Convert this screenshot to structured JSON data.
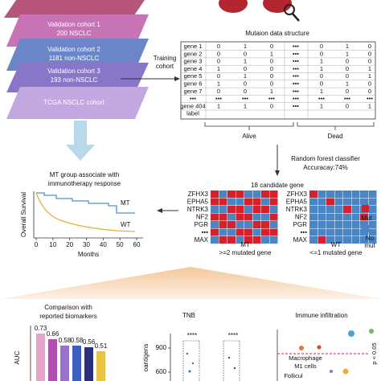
{
  "cohorts": [
    "Validation cohort 1",
    "200 NSCLC",
    "Validation cohort 2",
    "1181 non-NSCLC",
    "Validation cohort 3",
    "193 non-NSCLC",
    "TCGA NSCLC cohort"
  ],
  "training_label": [
    "Training",
    "cohort"
  ],
  "structure_title": "Mutaion data structure",
  "table": {
    "rows": [
      [
        "gene 1",
        "0",
        "1",
        "0",
        "•••",
        "0",
        "1",
        "0"
      ],
      [
        "gene 2",
        "0",
        "0",
        "1",
        "•••",
        "0",
        "1",
        "0"
      ],
      [
        "gene 3",
        "0",
        "1",
        "0",
        "•••",
        "1",
        "0",
        "0"
      ],
      [
        "gene 4",
        "1",
        "0",
        "0",
        "•••",
        "1",
        "0",
        "1"
      ],
      [
        "gene 5",
        "0",
        "1",
        "0",
        "•••",
        "0",
        "0",
        "1"
      ],
      [
        "gene 6",
        "1",
        "0",
        "0",
        "•••",
        "0",
        "1",
        "0"
      ],
      [
        "gene 7",
        "0",
        "0",
        "1",
        "•••",
        "1",
        "0",
        "0"
      ],
      [
        "•••",
        "•••",
        "•••",
        "•••",
        "•••",
        "•••",
        "•••",
        "•••"
      ],
      [
        "gene 404",
        "1",
        "1",
        "0",
        "•••",
        "1",
        "0",
        "1"
      ]
    ],
    "label_row": "label",
    "groups": [
      "Alive",
      "Dead"
    ]
  },
  "classifier": [
    "Random forest classifier",
    "Accuracay:74%"
  ],
  "candidate_title": "18 candidate gene",
  "genes": [
    "ZFHX3",
    "EPHA5",
    "NTRK3",
    "NF2",
    "PGR",
    "•••",
    "MAX"
  ],
  "legend": [
    "Mut",
    "No",
    "mut"
  ],
  "groups": [
    [
      "MT",
      ">=2 mutated gene"
    ],
    [
      "WT",
      "<=1 mutated gene"
    ]
  ],
  "survival": {
    "title": [
      "MT group associate with",
      "immunotherapy response"
    ],
    "y_label": "Overall Survival",
    "x_label": "Months",
    "xlim": [
      0,
      60
    ],
    "xticks": [
      0,
      10,
      20,
      30,
      40,
      50,
      60
    ],
    "curve_labels": [
      "MT",
      "WT"
    ]
  },
  "bar_chart": {
    "type": "bar",
    "title": [
      "Comparison with",
      "reported  biomarkers"
    ],
    "y_label": "AUC",
    "values": [
      0.73,
      0.66,
      0.58,
      0.58,
      0.56,
      0.51
    ],
    "colors": [
      "#e6a3c8",
      "#b04fb0",
      "#9a6fd0",
      "#3a5fc0",
      "#2b2e7a",
      "#e8c341"
    ]
  },
  "tnb": {
    "title": "TNB",
    "y_label": "oantigens",
    "yticks": [
      900,
      600
    ],
    "significance": [
      "****",
      "****"
    ]
  },
  "immune": {
    "title": "Immune infiltration",
    "labels": [
      "Macrophage",
      "M1 cells",
      "Follicul"
    ],
    "p_label": "p < 0.05"
  }
}
